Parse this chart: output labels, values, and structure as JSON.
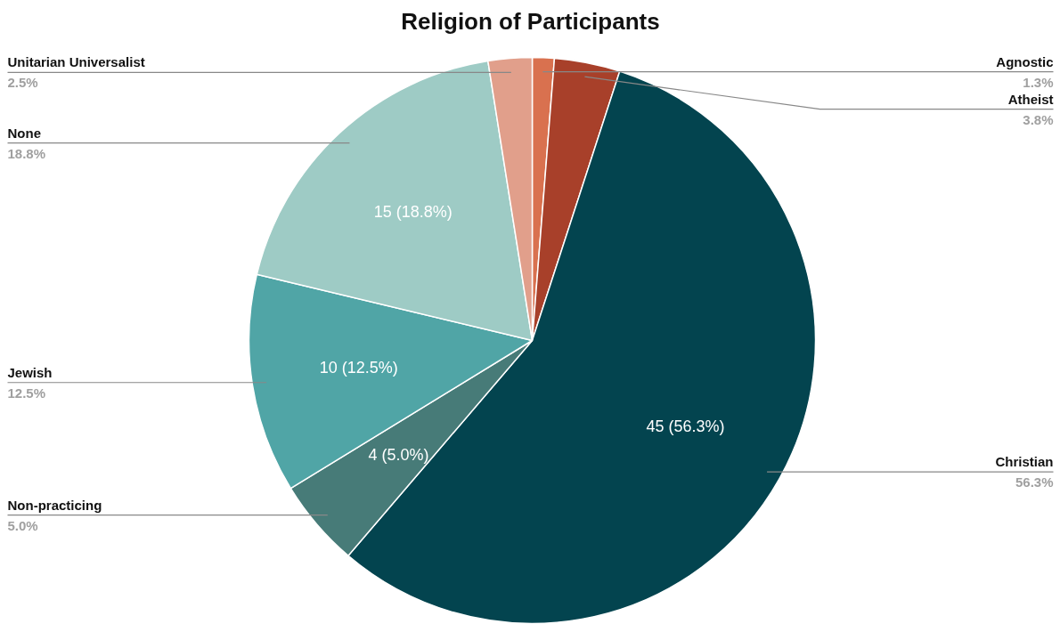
{
  "chart_data": {
    "type": "pie",
    "title": "Religion of Participants",
    "categories": [
      "Agnostic",
      "Atheist",
      "Christian",
      "Non-practicing",
      "Jewish",
      "None",
      "Unitarian Universalist"
    ],
    "values": [
      1,
      3,
      45,
      4,
      10,
      15,
      2
    ],
    "colors": [
      "#d9714f",
      "#a8402a",
      "#03444f",
      "#477b78",
      "#50a5a6",
      "#9ecbc5",
      "#e19f8b"
    ],
    "value_labels": [
      null,
      null,
      "45 (56.3%)",
      "4 (5.0%)",
      "10 (12.5%)",
      "15 (18.8%)",
      null
    ],
    "annotations": [
      "1.3%",
      "3.8%",
      "56.3%",
      "5.0%",
      "12.5%",
      "18.8%",
      "2.5%"
    ]
  }
}
